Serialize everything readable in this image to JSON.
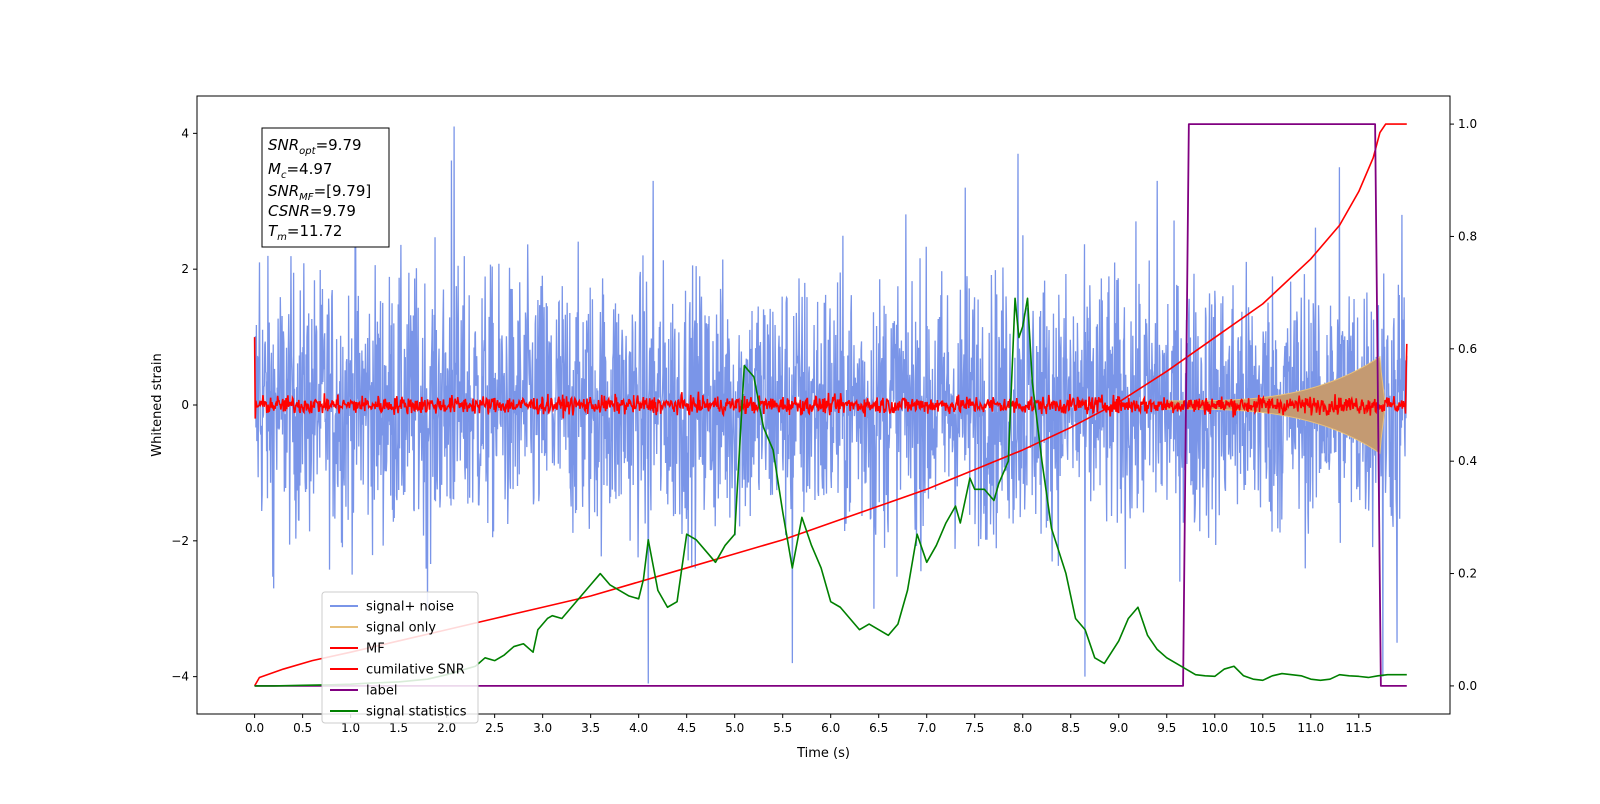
{
  "chart_data": {
    "type": "line",
    "xlabel": "Time (s)",
    "ylabel": "Whitened strain",
    "xlim": [
      -0.6,
      12.45
    ],
    "ylim": [
      -4.55,
      4.55
    ],
    "y2lim": [
      -0.05,
      1.05
    ],
    "x_ticks": [
      0.0,
      0.5,
      1.0,
      1.5,
      2.0,
      2.5,
      3.0,
      3.5,
      4.0,
      4.5,
      5.0,
      5.5,
      6.0,
      6.5,
      7.0,
      7.5,
      8.0,
      8.5,
      9.0,
      9.5,
      10.0,
      10.5,
      11.0,
      11.5
    ],
    "x_tick_labels": [
      "0.0",
      "0.5",
      "1.0",
      "1.5",
      "2.0",
      "2.5",
      "3.0",
      "3.5",
      "4.0",
      "4.5",
      "5.0",
      "5.5",
      "6.0",
      "6.5",
      "7.0",
      "7.5",
      "8.0",
      "8.5",
      "9.0",
      "9.5",
      "10.0",
      "10.5",
      "11.0",
      "11.5"
    ],
    "y_ticks": [
      -4,
      -2,
      0,
      2,
      4
    ],
    "y_tick_labels": [
      "−4",
      "−2",
      "0",
      "2",
      "4"
    ],
    "y2_ticks": [
      0.0,
      0.2,
      0.4,
      0.6,
      0.8,
      1.0
    ],
    "y2_tick_labels": [
      "0.0",
      "0.2",
      "0.4",
      "0.6",
      "0.8",
      "1.0"
    ],
    "legend_position": "lower-left",
    "grid": false,
    "annotations": [
      {
        "base": "SNR",
        "sub": "opt",
        "value": "=9.79"
      },
      {
        "base": "M",
        "sub": "c",
        "value": "=4.97"
      },
      {
        "base": "SNR",
        "sub": "MF",
        "value": "=[9.79]"
      },
      {
        "base": "CSNR",
        "sub": "",
        "value": "=9.79"
      },
      {
        "base": "T",
        "sub": "m",
        "value": "=11.72"
      }
    ],
    "series": [
      {
        "name": "signal+ noise",
        "color": "#7a95e8",
        "axis": "left",
        "x_range": [
          0.0,
          12.0
        ],
        "amplitude": 1.6,
        "spikes": [
          [
            0.05,
            2.1
          ],
          [
            0.2,
            -2.7
          ],
          [
            1.05,
            3.5
          ],
          [
            1.8,
            -3.0
          ],
          [
            2.08,
            4.1
          ],
          [
            2.05,
            3.6
          ],
          [
            4.1,
            -4.1
          ],
          [
            4.15,
            3.3
          ],
          [
            5.6,
            -3.8
          ],
          [
            6.45,
            -3.0
          ],
          [
            7.4,
            3.2
          ],
          [
            7.95,
            3.7
          ],
          [
            8.0,
            2.5
          ],
          [
            8.65,
            -4.0
          ],
          [
            9.4,
            3.3
          ],
          [
            11.3,
            3.5
          ],
          [
            11.75,
            -4.0
          ],
          [
            11.9,
            -3.5
          ],
          [
            11.95,
            2.8
          ]
        ]
      },
      {
        "name": "signal only",
        "color": "#e8c07a",
        "axis": "left",
        "x_range": [
          9.5,
          12.0
        ],
        "amp_at_end": 0.65,
        "envelope_power": 0.1,
        "fill": "#c49a72"
      },
      {
        "name": "MF",
        "color": "#ff0000",
        "axis": "left",
        "x_range": [
          0.0,
          12.0
        ],
        "amplitude": 0.18,
        "start_value": 1.0
      },
      {
        "name": "cumilative SNR",
        "color": "#ff0000",
        "axis": "right",
        "x": [
          0.0,
          0.05,
          0.3,
          0.6,
          1.0,
          1.5,
          2.0,
          2.5,
          3.0,
          3.5,
          4.0,
          4.5,
          5.0,
          5.5,
          6.0,
          6.5,
          7.0,
          7.5,
          8.0,
          8.5,
          9.0,
          9.5,
          10.0,
          10.5,
          11.0,
          11.3,
          11.5,
          11.65,
          11.72,
          11.78,
          11.8,
          12.0
        ],
        "y": [
          0.0,
          0.015,
          0.03,
          0.045,
          0.06,
          0.08,
          0.1,
          0.12,
          0.14,
          0.16,
          0.185,
          0.21,
          0.235,
          0.26,
          0.29,
          0.32,
          0.35,
          0.385,
          0.42,
          0.46,
          0.505,
          0.56,
          0.62,
          0.68,
          0.76,
          0.82,
          0.88,
          0.94,
          0.985,
          1.0,
          1.0,
          1.0
        ]
      },
      {
        "name": "label",
        "color": "#800080",
        "axis": "right",
        "x": [
          0.0,
          9.67,
          9.73,
          11.67,
          11.73,
          12.0
        ],
        "y": [
          0.0,
          0.0,
          1.0,
          1.0,
          0.0,
          0.0
        ]
      },
      {
        "name": "signal statistics",
        "color": "#008000",
        "axis": "right",
        "x": [
          0.0,
          0.2,
          0.5,
          0.8,
          1.0,
          1.2,
          1.5,
          1.8,
          2.0,
          2.1,
          2.2,
          2.3,
          2.4,
          2.5,
          2.6,
          2.7,
          2.8,
          2.9,
          2.95,
          3.05,
          3.1,
          3.2,
          3.3,
          3.4,
          3.5,
          3.6,
          3.7,
          3.8,
          3.9,
          4.0,
          4.05,
          4.1,
          4.2,
          4.3,
          4.4,
          4.5,
          4.6,
          4.7,
          4.8,
          4.9,
          5.0,
          5.1,
          5.2,
          5.3,
          5.4,
          5.5,
          5.6,
          5.7,
          5.8,
          5.9,
          6.0,
          6.1,
          6.2,
          6.3,
          6.4,
          6.5,
          6.6,
          6.7,
          6.8,
          6.9,
          7.0,
          7.1,
          7.2,
          7.3,
          7.35,
          7.45,
          7.5,
          7.6,
          7.7,
          7.75,
          7.85,
          7.92,
          7.96,
          8.0,
          8.05,
          8.1,
          8.2,
          8.3,
          8.45,
          8.55,
          8.65,
          8.75,
          8.85,
          9.0,
          9.1,
          9.2,
          9.3,
          9.4,
          9.5,
          9.6,
          9.7,
          9.8,
          9.9,
          10.0,
          10.1,
          10.2,
          10.3,
          10.4,
          10.5,
          10.6,
          10.7,
          10.8,
          10.9,
          11.0,
          11.1,
          11.2,
          11.3,
          11.4,
          11.5,
          11.6,
          11.7,
          11.8,
          11.9,
          12.0
        ],
        "y": [
          0.0,
          0.0,
          0.001,
          0.002,
          0.003,
          0.005,
          0.007,
          0.012,
          0.02,
          0.025,
          0.03,
          0.035,
          0.05,
          0.045,
          0.055,
          0.07,
          0.075,
          0.06,
          0.1,
          0.12,
          0.125,
          0.12,
          0.14,
          0.16,
          0.18,
          0.2,
          0.18,
          0.17,
          0.16,
          0.155,
          0.19,
          0.26,
          0.17,
          0.14,
          0.15,
          0.27,
          0.26,
          0.24,
          0.22,
          0.25,
          0.27,
          0.57,
          0.55,
          0.46,
          0.42,
          0.31,
          0.21,
          0.3,
          0.25,
          0.21,
          0.15,
          0.14,
          0.12,
          0.1,
          0.11,
          0.1,
          0.09,
          0.11,
          0.17,
          0.27,
          0.22,
          0.25,
          0.29,
          0.32,
          0.29,
          0.37,
          0.35,
          0.35,
          0.33,
          0.36,
          0.4,
          0.69,
          0.62,
          0.64,
          0.69,
          0.54,
          0.4,
          0.28,
          0.2,
          0.12,
          0.1,
          0.05,
          0.04,
          0.08,
          0.12,
          0.14,
          0.09,
          0.065,
          0.05,
          0.04,
          0.03,
          0.02,
          0.018,
          0.017,
          0.03,
          0.035,
          0.018,
          0.012,
          0.01,
          0.018,
          0.022,
          0.02,
          0.018,
          0.012,
          0.01,
          0.012,
          0.02,
          0.018,
          0.017,
          0.015,
          0.018,
          0.02,
          0.02,
          0.02
        ]
      }
    ]
  }
}
